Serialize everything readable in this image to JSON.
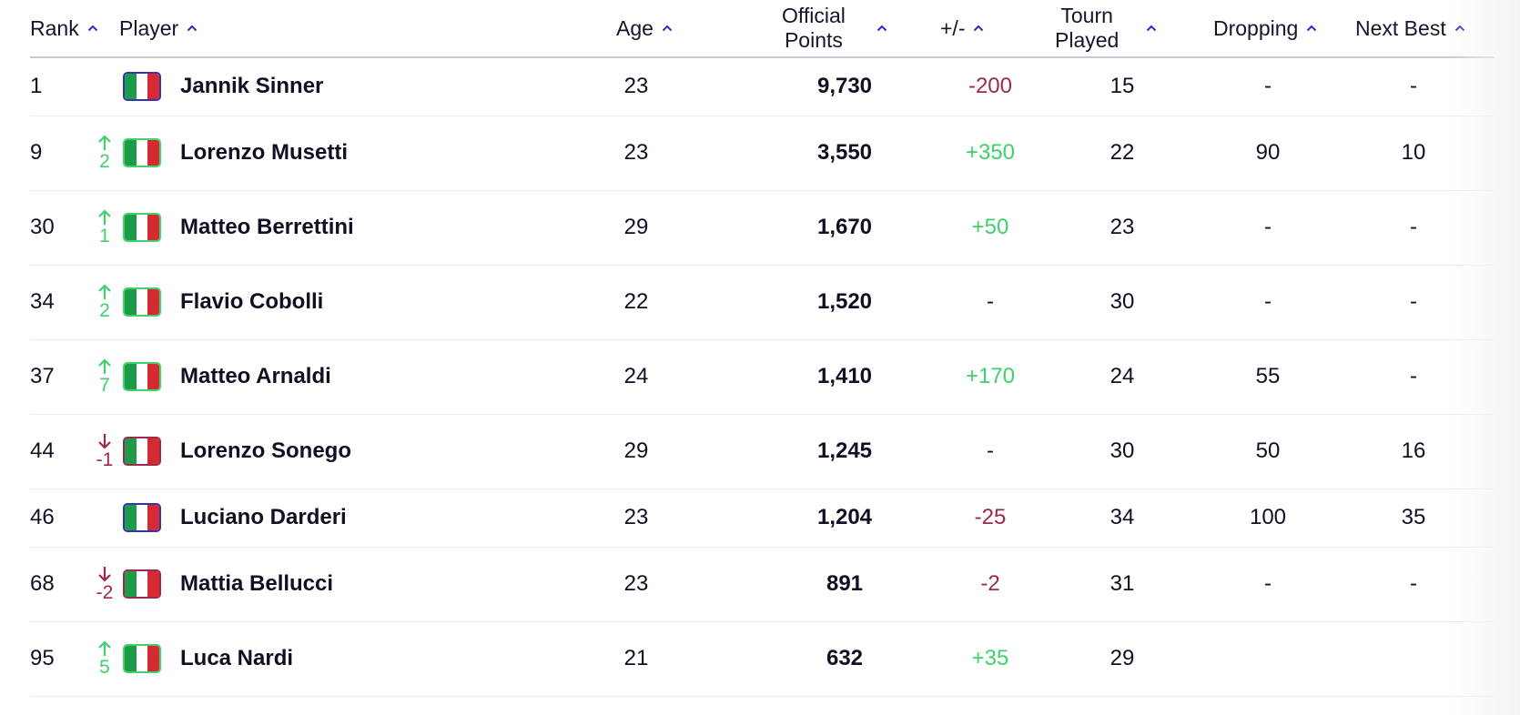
{
  "columns": {
    "rank": "Rank",
    "player": "Player",
    "age": "Age",
    "points_line1": "Official",
    "points_line2": "Points",
    "change": "+/-",
    "tourn_line1": "Tourn",
    "tourn_line2": "Played",
    "dropping": "Dropping",
    "next_best": "Next Best"
  },
  "colors": {
    "up": "#3fd16a",
    "down": "#9c2a4e",
    "flag_green": "#1e9b46",
    "flag_white": "#ffffff",
    "flag_red": "#d52a32"
  },
  "rows": [
    {
      "rank": "1",
      "move": "",
      "dir": "none",
      "flag": "italy-flag",
      "player": "Jannik Sinner",
      "age": "23",
      "points": "9,730",
      "change": "-200",
      "change_sign": "neg",
      "tourn": "15",
      "dropping": "-",
      "next_best": "-"
    },
    {
      "rank": "9",
      "move": "2",
      "dir": "up",
      "flag": "italy-flag",
      "player": "Lorenzo Musetti",
      "age": "23",
      "points": "3,550",
      "change": "+350",
      "change_sign": "pos",
      "tourn": "22",
      "dropping": "90",
      "next_best": "10"
    },
    {
      "rank": "30",
      "move": "1",
      "dir": "up",
      "flag": "italy-flag",
      "player": "Matteo Berrettini",
      "age": "29",
      "points": "1,670",
      "change": "+50",
      "change_sign": "pos",
      "tourn": "23",
      "dropping": "-",
      "next_best": "-"
    },
    {
      "rank": "34",
      "move": "2",
      "dir": "up",
      "flag": "italy-flag",
      "player": "Flavio Cobolli",
      "age": "22",
      "points": "1,520",
      "change": "-",
      "change_sign": "neu",
      "tourn": "30",
      "dropping": "-",
      "next_best": "-"
    },
    {
      "rank": "37",
      "move": "7",
      "dir": "up",
      "flag": "italy-flag",
      "player": "Matteo Arnaldi",
      "age": "24",
      "points": "1,410",
      "change": "+170",
      "change_sign": "pos",
      "tourn": "24",
      "dropping": "55",
      "next_best": "-"
    },
    {
      "rank": "44",
      "move": "-1",
      "dir": "down",
      "flag": "italy-flag",
      "player": "Lorenzo Sonego",
      "age": "29",
      "points": "1,245",
      "change": "-",
      "change_sign": "neu",
      "tourn": "30",
      "dropping": "50",
      "next_best": "16"
    },
    {
      "rank": "46",
      "move": "",
      "dir": "none",
      "flag": "italy-flag",
      "player": "Luciano Darderi",
      "age": "23",
      "points": "1,204",
      "change": "-25",
      "change_sign": "neg",
      "tourn": "34",
      "dropping": "100",
      "next_best": "35"
    },
    {
      "rank": "68",
      "move": "-2",
      "dir": "down",
      "flag": "italy-flag",
      "player": "Mattia Bellucci",
      "age": "23",
      "points": "891",
      "change": "-2",
      "change_sign": "neg",
      "tourn": "31",
      "dropping": "-",
      "next_best": "-"
    },
    {
      "rank": "95",
      "move": "5",
      "dir": "up",
      "flag": "italy-flag",
      "player": "Luca Nardi",
      "age": "21",
      "points": "632",
      "change": "+35",
      "change_sign": "pos",
      "tourn": "29",
      "dropping": "",
      "next_best": ""
    }
  ]
}
